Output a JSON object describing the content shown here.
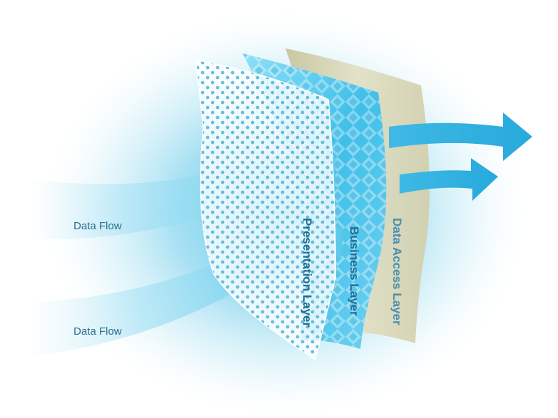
{
  "diagram": {
    "flows": [
      {
        "label": "Data Flow"
      },
      {
        "label": "Data Flow"
      }
    ],
    "layers": [
      {
        "label": "Presentation Layer",
        "color": "#1f6f99"
      },
      {
        "label": "Business Layer",
        "color": "#1f6f99"
      },
      {
        "label": "Data Access Layer",
        "color": "#4a8fb0"
      }
    ],
    "colors": {
      "glow": "#7fd3ea",
      "arrow": "#3bbde6",
      "presentation_dots": "#58b8dc",
      "business_fill": "#5cc6ea",
      "data_access_fill": "#d9d6b4"
    }
  }
}
